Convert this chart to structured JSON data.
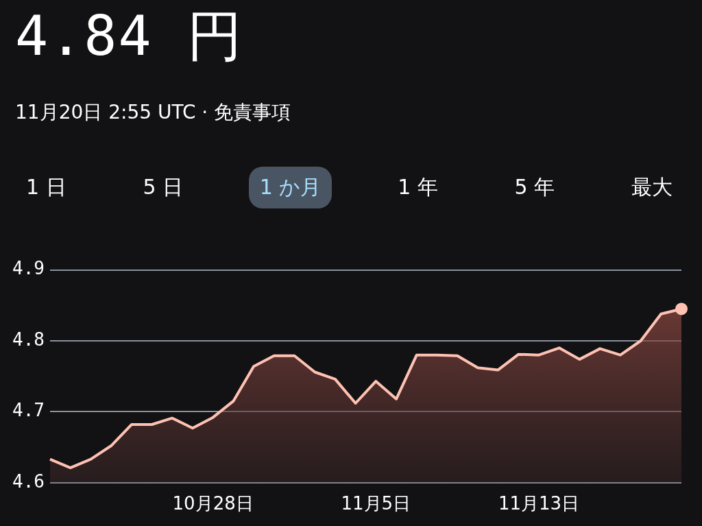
{
  "chart_data": {
    "type": "area",
    "title": "4.84 円",
    "subtitle": "11月20日 2:55 UTC · 免責事項",
    "annotations": [
      "1 日",
      "5 日",
      "1 か月",
      "1 年",
      "5 年",
      "最大"
    ],
    "x": [
      "--10-20",
      "--10-21",
      "--10-22",
      "--10-23",
      "--10-24",
      "--10-25",
      "--10-26",
      "--10-27",
      "--10-28",
      "--10-29",
      "--10-30",
      "--10-31",
      "--11-01",
      "--11-02",
      "--11-03",
      "--11-04",
      "--11-05",
      "--11-06",
      "--11-07",
      "--11-08",
      "--11-09",
      "--11-10",
      "--11-11",
      "--11-12",
      "--11-13",
      "--11-14",
      "--11-15",
      "--11-16",
      "--11-17",
      "--11-18",
      "--11-19",
      "--11-20"
    ],
    "series": [
      {
        "color": "#ffc2b2",
        "values": [
          4.633,
          4.621,
          4.633,
          4.652,
          4.682,
          4.682,
          4.691,
          4.677,
          4.692,
          4.715,
          4.764,
          4.779,
          4.779,
          4.756,
          4.746,
          4.712,
          4.743,
          4.718,
          4.78,
          4.78,
          4.779,
          4.762,
          4.759,
          4.781,
          4.78,
          4.79,
          4.774,
          4.789,
          4.78,
          4.8,
          4.838,
          4.845
        ]
      }
    ],
    "xlim": [
      "--10-20",
      "--11-20"
    ],
    "xticks": [
      {
        "value": "--10-28",
        "label": "10月28日"
      },
      {
        "value": "--11-05",
        "label": "11月5日"
      },
      {
        "value": "--11-13",
        "label": "11月13日"
      }
    ],
    "ylim": [
      4.6,
      4.9
    ],
    "yticks": [
      4.6,
      4.7,
      4.8,
      4.9
    ],
    "grid": "y",
    "legend": false
  }
}
